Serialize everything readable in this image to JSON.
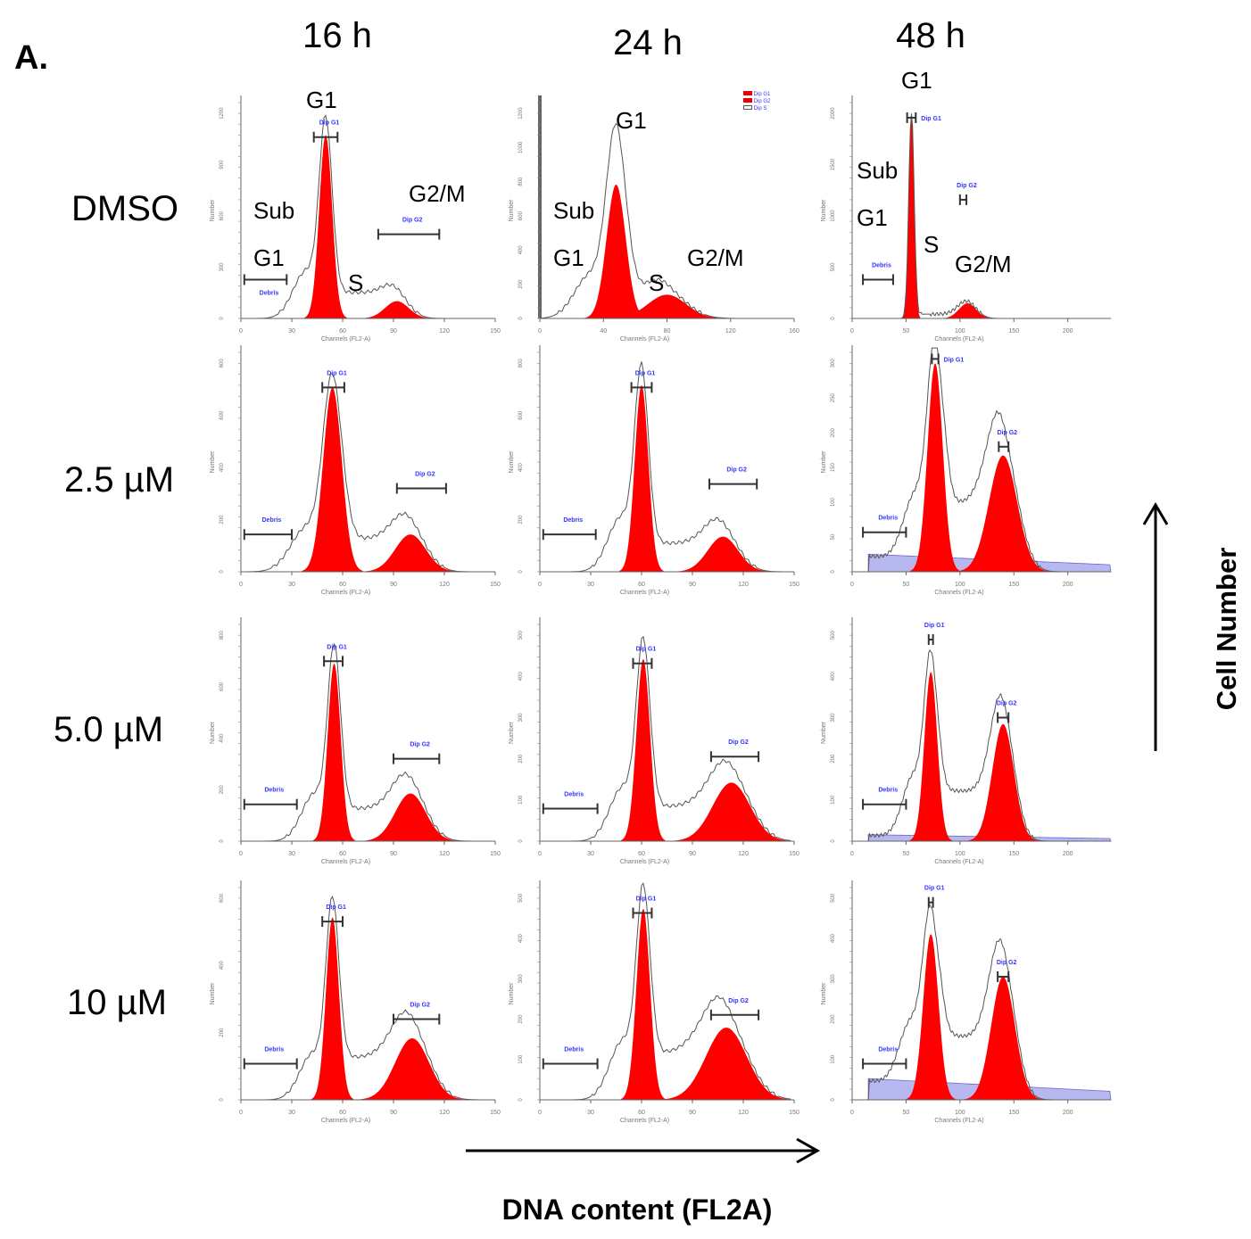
{
  "panel_label": "A.",
  "columns": [
    "16 h",
    "24 h",
    "48 h"
  ],
  "rows": [
    "DMSO",
    "2.5 µM",
    "5.0 µM",
    "10 µM"
  ],
  "x_axis_title": "DNA content (FL2A)",
  "y_axis_title": "Cell Number",
  "annotations": {
    "c16": {
      "g1": "G1",
      "sub": "Sub",
      "subg1": "G1",
      "s": "S",
      "g2m": "G2/M"
    },
    "c24": {
      "g1": "G1",
      "sub": "Sub",
      "subg1": "G1",
      "s": "S",
      "g2m": "G2/M"
    },
    "c48": {
      "g1": "G1",
      "sub": "Sub",
      "subg1": "G1",
      "s": "S",
      "g2m": "G2/M"
    }
  },
  "legend_24h_dmso": [
    "Dip G1",
    "Dip G2",
    "Dip S"
  ],
  "colors": {
    "g1_fill": "#ff0000",
    "g2_fill": "#ff0000",
    "envelope": "#555555",
    "gate_label": "#3333ff",
    "debris_fill": "#b8b8f0"
  },
  "chart_data": [
    {
      "type": "area",
      "column": "16 h",
      "row": "DMSO",
      "xlabel": "Channels (FL2-A)",
      "ylabel": "Number",
      "xlim": [
        0,
        150
      ],
      "xticks": [
        0,
        30,
        60,
        90,
        120,
        150
      ],
      "yticks": [
        "0",
        "300",
        "600",
        "900",
        "1200"
      ],
      "g1": [
        50,
        0.85,
        3.8
      ],
      "g2": [
        92,
        0.08,
        7
      ],
      "s": 0.12,
      "sub": 0.22,
      "gates": [
        {
          "label": "Debris",
          "range": [
            2,
            27
          ],
          "y": 0.18
        },
        {
          "label": "Dip G1",
          "range": [
            43,
            57
          ],
          "y": 0.84
        },
        {
          "label": "Dip G2",
          "range": [
            81,
            117
          ],
          "y": 0.39
        }
      ]
    },
    {
      "type": "area",
      "column": "16 h",
      "row": "2.5 µM",
      "xlabel": "Channels (FL2-A)",
      "ylabel": "Number",
      "xlim": [
        0,
        150
      ],
      "xticks": [
        0,
        30,
        60,
        90,
        120,
        150
      ],
      "yticks": [
        "0",
        "200",
        "400",
        "600",
        "800"
      ],
      "g1": [
        54,
        0.84,
        5.5
      ],
      "g2": [
        100,
        0.17,
        9
      ],
      "s": 0.15,
      "sub": 0.2,
      "gates": [
        {
          "label": "Debris",
          "range": [
            2,
            30
          ],
          "y": 0.17
        },
        {
          "label": "Dip G1",
          "range": [
            48,
            61
          ],
          "y": 0.84
        },
        {
          "label": "Dip G2",
          "range": [
            92,
            121
          ],
          "y": 0.38
        }
      ]
    },
    {
      "type": "area",
      "column": "16 h",
      "row": "5.0 µM",
      "xlabel": "Channels (FL2-A)",
      "ylabel": "Number",
      "xlim": [
        0,
        150
      ],
      "xticks": [
        0,
        30,
        60,
        90,
        120,
        150
      ],
      "yticks": [
        "0",
        "200",
        "400",
        "600",
        "800"
      ],
      "g1": [
        55,
        0.82,
        3.8
      ],
      "g2": [
        100,
        0.22,
        9
      ],
      "s": 0.15,
      "sub": 0.22,
      "gates": [
        {
          "label": "Debris",
          "range": [
            2,
            33
          ],
          "y": 0.17
        },
        {
          "label": "Dip G1",
          "range": [
            49,
            60
          ],
          "y": 0.83
        },
        {
          "label": "Dip G2",
          "range": [
            90,
            117
          ],
          "y": 0.38
        }
      ]
    },
    {
      "type": "area",
      "column": "16 h",
      "row": "10 µM",
      "xlabel": "Channels (FL2-A)",
      "ylabel": "Number",
      "xlim": [
        0,
        150
      ],
      "xticks": [
        0,
        30,
        60,
        90,
        120,
        150
      ],
      "yticks": [
        "0",
        "200",
        "400",
        "600"
      ],
      "g1": [
        54,
        0.86,
        3.8
      ],
      "g2": [
        101,
        0.29,
        10
      ],
      "s": 0.2,
      "sub": 0.22,
      "gates": [
        {
          "label": "Debris",
          "range": [
            2,
            33
          ],
          "y": 0.17
        },
        {
          "label": "Dip G1",
          "range": [
            48,
            60
          ],
          "y": 0.84
        },
        {
          "label": "Dip G2",
          "range": [
            90,
            117
          ],
          "y": 0.38
        }
      ]
    },
    {
      "type": "area",
      "column": "24 h",
      "row": "DMSO",
      "xlabel": "Channels (FL2-A)",
      "ylabel": "Number",
      "xlim": [
        0,
        160
      ],
      "xticks": [
        0,
        40,
        80,
        120,
        160
      ],
      "yticks": [
        "0",
        "200",
        "400",
        "600",
        "800",
        "1000",
        "1200"
      ],
      "g1": [
        48,
        0.62,
        6
      ],
      "g2": [
        80,
        0.11,
        12
      ],
      "s": 0.1,
      "sub": 0.2,
      "peak_extra": 0.22,
      "gates": []
    },
    {
      "type": "area",
      "column": "24 h",
      "row": "2.5 µM",
      "xlabel": "Channels (FL2-A)",
      "ylabel": "Number",
      "xlim": [
        0,
        150
      ],
      "xticks": [
        0,
        30,
        60,
        90,
        120,
        150
      ],
      "yticks": [
        "0",
        "200",
        "400",
        "600",
        "800"
      ],
      "g1": [
        60,
        0.85,
        4
      ],
      "g2": [
        108,
        0.16,
        9
      ],
      "s": 0.13,
      "sub": 0.25,
      "gates": [
        {
          "label": "Debris",
          "range": [
            2,
            33
          ],
          "y": 0.17
        },
        {
          "label": "Dip G1",
          "range": [
            54,
            66
          ],
          "y": 0.84
        },
        {
          "label": "Dip G2",
          "range": [
            100,
            128
          ],
          "y": 0.4
        }
      ]
    },
    {
      "type": "area",
      "column": "24 h",
      "row": "5.0 µM",
      "xlabel": "Channels (FL2-A)",
      "ylabel": "Number",
      "xlim": [
        0,
        150
      ],
      "xticks": [
        0,
        30,
        60,
        90,
        120,
        150
      ],
      "yticks": [
        "0",
        "100",
        "200",
        "300",
        "400",
        "500"
      ],
      "g1": [
        61,
        0.84,
        4
      ],
      "g2": [
        113,
        0.27,
        11
      ],
      "s": 0.16,
      "sub": 0.25,
      "gates": [
        {
          "label": "Debris",
          "range": [
            2,
            34
          ],
          "y": 0.15
        },
        {
          "label": "Dip G1",
          "range": [
            55,
            66
          ],
          "y": 0.82
        },
        {
          "label": "Dip G2",
          "range": [
            101,
            129
          ],
          "y": 0.39
        }
      ]
    },
    {
      "type": "area",
      "column": "24 h",
      "row": "10 µM",
      "xlabel": "Channels (FL2-A)",
      "ylabel": "Number",
      "xlim": [
        0,
        150
      ],
      "xticks": [
        0,
        30,
        60,
        90,
        120,
        150
      ],
      "yticks": [
        "0",
        "100",
        "200",
        "300",
        "400",
        "500"
      ],
      "g1": [
        61,
        0.9,
        4
      ],
      "g2": [
        110,
        0.34,
        12
      ],
      "s": 0.22,
      "sub": 0.28,
      "gates": [
        {
          "label": "Debris",
          "range": [
            2,
            34
          ],
          "y": 0.17
        },
        {
          "label": "Dip G1",
          "range": [
            55,
            66
          ],
          "y": 0.88
        },
        {
          "label": "Dip G2",
          "range": [
            101,
            129
          ],
          "y": 0.4
        }
      ]
    },
    {
      "type": "area",
      "column": "48 h",
      "row": "DMSO",
      "xlabel": "Channels (FL2-A)",
      "ylabel": "Number",
      "xlim": [
        0,
        240
      ],
      "xticks": [
        0,
        50,
        100,
        150,
        200
      ],
      "yticks": [
        "0",
        "500",
        "1000",
        "1500",
        "2000"
      ],
      "g1": [
        55,
        0.95,
        2.5
      ],
      "g2": [
        107,
        0.07,
        8
      ],
      "s": 0.02,
      "sub": 0.0,
      "gates": [
        {
          "label": "Debris",
          "range": [
            10,
            38
          ],
          "y": 0.18
        },
        {
          "label": "Dip G1",
          "range": [
            51,
            59
          ],
          "y": 0.93
        },
        {
          "label": "Dip G2",
          "range": [
            100,
            106
          ],
          "y": 0.55
        }
      ]
    },
    {
      "type": "area",
      "column": "48 h",
      "row": "2.5 µM",
      "xlabel": "Channels (FL2-A)",
      "ylabel": "Number",
      "xlim": [
        0,
        240
      ],
      "xticks": [
        0,
        50,
        100,
        150,
        200
      ],
      "yticks": [
        "0",
        "50",
        "100",
        "150",
        "200",
        "250",
        "300"
      ],
      "g1": [
        77,
        0.95,
        7
      ],
      "g2": [
        140,
        0.53,
        13
      ],
      "s": 0.28,
      "sub": 0.3,
      "debris": 0.08,
      "gates": [
        {
          "label": "Debris",
          "range": [
            10,
            50
          ],
          "y": 0.18
        },
        {
          "label": "Dip G1",
          "range": [
            74,
            80
          ],
          "y": 0.97
        },
        {
          "label": "Dip G2",
          "range": [
            136,
            145
          ],
          "y": 0.57
        }
      ]
    },
    {
      "type": "area",
      "column": "48 h",
      "row": "5.0 µM",
      "xlabel": "Channels (FL2-A)",
      "ylabel": "Number",
      "xlim": [
        0,
        240
      ],
      "xticks": [
        0,
        50,
        100,
        150,
        200
      ],
      "yticks": [
        "0",
        "100",
        "200",
        "300",
        "400",
        "500"
      ],
      "g1": [
        73,
        0.78,
        6
      ],
      "g2": [
        140,
        0.54,
        10
      ],
      "s": 0.22,
      "sub": 0.28,
      "debris": 0.03,
      "gates": [
        {
          "label": "Debris",
          "range": [
            10,
            50
          ],
          "y": 0.17
        },
        {
          "label": "Dip G1",
          "range": [
            71,
            75
          ],
          "y": 0.93
        },
        {
          "label": "Dip G2",
          "range": [
            135,
            145
          ],
          "y": 0.57
        }
      ]
    },
    {
      "type": "area",
      "column": "48 h",
      "row": "10 µM",
      "xlabel": "Channels (FL2-A)",
      "ylabel": "Number",
      "xlim": [
        0,
        240
      ],
      "xticks": [
        0,
        50,
        100,
        150,
        200
      ],
      "yticks": [
        "0",
        "100",
        "200",
        "300",
        "400",
        "500"
      ],
      "g1": [
        73,
        0.78,
        7
      ],
      "g2": [
        140,
        0.58,
        11
      ],
      "s": 0.26,
      "sub": 0.3,
      "debris": 0.1,
      "gates": [
        {
          "label": "Debris",
          "range": [
            10,
            50
          ],
          "y": 0.17
        },
        {
          "label": "Dip G1",
          "range": [
            71,
            75
          ],
          "y": 0.93
        },
        {
          "label": "Dip G2",
          "range": [
            135,
            145
          ],
          "y": 0.58
        }
      ]
    }
  ]
}
